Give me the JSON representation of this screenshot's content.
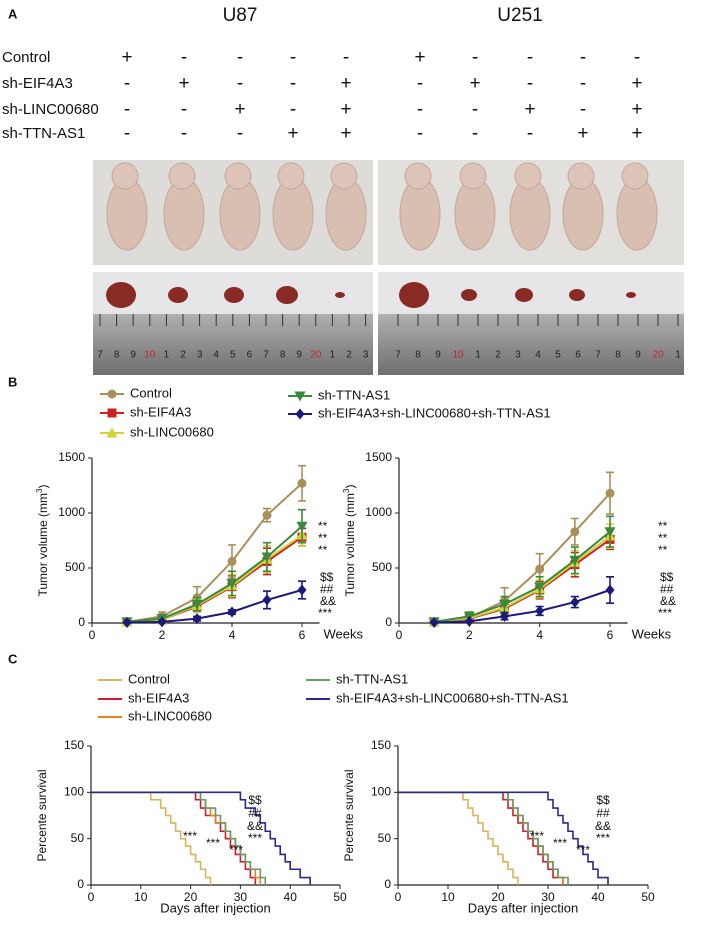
{
  "panel_labels": [
    "A",
    "B",
    "C"
  ],
  "panel_a": {
    "titles": [
      "U87",
      "U251"
    ],
    "rows": [
      {
        "label": "Control",
        "signs": [
          "+",
          "-",
          "-",
          "-",
          "-",
          "+",
          "-",
          "-",
          "-",
          "-"
        ]
      },
      {
        "label": "sh-EIF4A3",
        "signs": [
          "-",
          "+",
          "-",
          "-",
          "+",
          "-",
          "+",
          "-",
          "-",
          "+"
        ]
      },
      {
        "label": "sh-LINC00680",
        "signs": [
          "-",
          "-",
          "+",
          "-",
          "+",
          "-",
          "-",
          "+",
          "-",
          "+"
        ]
      },
      {
        "label": "sh-TTN-AS1",
        "signs": [
          "-",
          "-",
          "-",
          "+",
          "+",
          "-",
          "-",
          "-",
          "+",
          "+"
        ]
      }
    ],
    "ruler_labels": [
      [
        "7",
        "8",
        "9",
        "10",
        "1",
        "2",
        "3",
        "4",
        "5",
        "6",
        "7",
        "8",
        "9",
        "20",
        "1",
        "2",
        "3"
      ],
      [
        "7",
        "8",
        "9",
        "10",
        "1",
        "2",
        "3",
        "4",
        "5",
        "6",
        "7",
        "8",
        "9",
        "20",
        "1"
      ]
    ]
  },
  "chart_data": [
    {
      "type": "line",
      "x_label": "Weeks",
      "y_label": "Tumor volume (mm",
      "y_label_sup": "3",
      "y_label_end": ")",
      "x": [
        1,
        2,
        3,
        4,
        5,
        6
      ],
      "xlim": [
        0,
        6.5
      ],
      "xticks": [
        0,
        2,
        4,
        6
      ],
      "ylim": [
        0,
        1500
      ],
      "yticks": [
        0,
        500,
        1000,
        1500
      ],
      "series": [
        {
          "name": "Control",
          "color": "#a8905a",
          "marker": "circle",
          "values": [
            10,
            60,
            230,
            560,
            980,
            1270
          ],
          "errors": [
            10,
            40,
            100,
            150,
            60,
            160
          ]
        },
        {
          "name": "sh-EIF4A3",
          "color": "#cc2222",
          "marker": "square",
          "values": [
            10,
            30,
            150,
            330,
            560,
            780
          ],
          "errors": [
            5,
            20,
            50,
            100,
            120,
            80
          ]
        },
        {
          "name": "sh-LINC00680",
          "color": "#d4d43a",
          "marker": "triangle-up",
          "values": [
            10,
            30,
            160,
            340,
            580,
            800
          ],
          "errors": [
            5,
            20,
            60,
            100,
            120,
            100
          ]
        },
        {
          "name": "sh-TTN-AS1",
          "color": "#3a8a3a",
          "marker": "triangle-down",
          "values": [
            10,
            40,
            170,
            360,
            600,
            880
          ],
          "errors": [
            5,
            25,
            60,
            110,
            130,
            150
          ]
        },
        {
          "name": "sh-EIF4A3+sh-LINC00680+sh-TTN-AS1",
          "color": "#1a1a7a",
          "marker": "diamond",
          "values": [
            5,
            10,
            40,
            100,
            210,
            300
          ],
          "errors": [
            5,
            10,
            20,
            20,
            80,
            80
          ]
        }
      ],
      "annotations": [
        "**",
        "**",
        "**",
        "$$",
        "##",
        "&&",
        "***"
      ]
    },
    {
      "type": "line",
      "x_label": "Weeks",
      "y_label": "Tumor volume (mm",
      "y_label_sup": "3",
      "y_label_end": ")",
      "x": [
        1,
        2,
        3,
        4,
        5,
        6
      ],
      "xlim": [
        0,
        6.5
      ],
      "xticks": [
        0,
        2,
        4,
        6
      ],
      "ylim": [
        0,
        1500
      ],
      "yticks": [
        0,
        500,
        1000,
        1500
      ],
      "series": [
        {
          "color": "#a8905a",
          "marker": "circle",
          "values": [
            10,
            50,
            200,
            490,
            830,
            1180
          ],
          "errors": [
            5,
            40,
            120,
            140,
            120,
            190
          ]
        },
        {
          "color": "#cc2222",
          "marker": "square",
          "values": [
            10,
            40,
            130,
            300,
            530,
            760
          ],
          "errors": [
            5,
            30,
            60,
            80,
            110,
            90
          ]
        },
        {
          "color": "#d4d43a",
          "marker": "triangle-up",
          "values": [
            10,
            45,
            140,
            310,
            550,
            790
          ],
          "errors": [
            5,
            30,
            60,
            80,
            110,
            110
          ]
        },
        {
          "color": "#3a8a3a",
          "marker": "triangle-down",
          "values": [
            10,
            60,
            170,
            330,
            570,
            830
          ],
          "errors": [
            5,
            40,
            70,
            90,
            120,
            140
          ]
        },
        {
          "color": "#1a1a7a",
          "marker": "diamond",
          "values": [
            5,
            15,
            60,
            110,
            190,
            300
          ],
          "errors": [
            5,
            10,
            30,
            40,
            50,
            120
          ]
        }
      ],
      "annotations": [
        "**",
        "**",
        "**",
        "$$",
        "##",
        "&&",
        "***"
      ]
    },
    {
      "type": "step",
      "x_label": "Days after injection",
      "y_label": "Percente survival",
      "xlim": [
        0,
        50
      ],
      "xticks": [
        0,
        10,
        20,
        30,
        40,
        50
      ],
      "ylim": [
        0,
        150
      ],
      "yticks": [
        0,
        50,
        100,
        150
      ],
      "series": [
        {
          "name": "Control",
          "color": "#d9b45c",
          "x": [
            0,
            12,
            14,
            15,
            16,
            17,
            18,
            19,
            20,
            21,
            22,
            23,
            24
          ],
          "values": [
            100,
            92,
            83,
            75,
            67,
            58,
            50,
            42,
            33,
            25,
            17,
            8,
            0
          ]
        },
        {
          "name": "sh-EIF4A3",
          "color": "#c8202a",
          "x": [
            0,
            21,
            22,
            23,
            25,
            26,
            27,
            28,
            29,
            30,
            31,
            32,
            33
          ],
          "values": [
            100,
            92,
            83,
            75,
            67,
            58,
            50,
            42,
            33,
            25,
            17,
            8,
            0
          ]
        },
        {
          "name": "sh-LINC00680",
          "color": "#e8821e",
          "x": [
            0,
            22,
            23,
            24,
            25,
            27,
            28,
            29,
            30,
            31,
            32,
            33,
            34
          ],
          "values": [
            100,
            92,
            83,
            75,
            67,
            58,
            50,
            42,
            33,
            25,
            17,
            8,
            0
          ]
        },
        {
          "name": "sh-TTN-AS1",
          "color": "#6a9a6a",
          "x": [
            0,
            22,
            23,
            25,
            26,
            27,
            28,
            29,
            30,
            31,
            32,
            34,
            35
          ],
          "values": [
            100,
            92,
            83,
            75,
            67,
            58,
            50,
            42,
            33,
            25,
            17,
            8,
            0
          ]
        },
        {
          "name": "sh-EIF4A3+sh-LINC00680+sh-TTN-AS1",
          "color": "#2a2a8a",
          "x": [
            0,
            30,
            31,
            33,
            34,
            35,
            36,
            37,
            38,
            39,
            40,
            42,
            44
          ],
          "values": [
            100,
            92,
            83,
            75,
            67,
            58,
            50,
            42,
            33,
            25,
            17,
            8,
            0
          ]
        }
      ],
      "annotations": [
        "***",
        "***",
        "***",
        "$$",
        "##",
        "&&",
        "***"
      ]
    },
    {
      "type": "step",
      "x_label": "Days after injection",
      "y_label": "Percente survival",
      "xlim": [
        0,
        50
      ],
      "xticks": [
        0,
        10,
        20,
        30,
        40,
        50
      ],
      "ylim": [
        0,
        150
      ],
      "yticks": [
        0,
        50,
        100,
        150
      ],
      "series": [
        {
          "color": "#d9b45c",
          "x": [
            0,
            13,
            14,
            15,
            16,
            17,
            18,
            19,
            20,
            21,
            22,
            23,
            24
          ],
          "values": [
            100,
            92,
            83,
            75,
            67,
            58,
            50,
            42,
            33,
            25,
            17,
            8,
            0
          ]
        },
        {
          "color": "#c8202a",
          "x": [
            0,
            21,
            22,
            23,
            24,
            25,
            26,
            27,
            28,
            29,
            30,
            31,
            33
          ],
          "values": [
            100,
            92,
            83,
            75,
            67,
            58,
            50,
            42,
            33,
            25,
            17,
            8,
            0
          ]
        },
        {
          "color": "#e8821e",
          "x": [
            0,
            22,
            23,
            24,
            25,
            26,
            27,
            28,
            29,
            30,
            31,
            32,
            33
          ],
          "values": [
            100,
            92,
            83,
            75,
            67,
            58,
            50,
            42,
            33,
            25,
            17,
            8,
            0
          ]
        },
        {
          "color": "#6a9a6a",
          "x": [
            0,
            22,
            23,
            24,
            25,
            26,
            27,
            28,
            29,
            30,
            31,
            32,
            34
          ],
          "values": [
            100,
            92,
            83,
            75,
            67,
            58,
            50,
            42,
            33,
            25,
            17,
            8,
            0
          ]
        },
        {
          "color": "#2a2a8a",
          "x": [
            0,
            30,
            31,
            32,
            33,
            34,
            35,
            36,
            37,
            38,
            39,
            40,
            42
          ],
          "values": [
            100,
            92,
            83,
            75,
            67,
            58,
            50,
            42,
            33,
            25,
            17,
            8,
            0
          ]
        }
      ],
      "annotations": [
        "***",
        "***",
        "***",
        "$$",
        "##",
        "&&",
        "***"
      ]
    }
  ]
}
